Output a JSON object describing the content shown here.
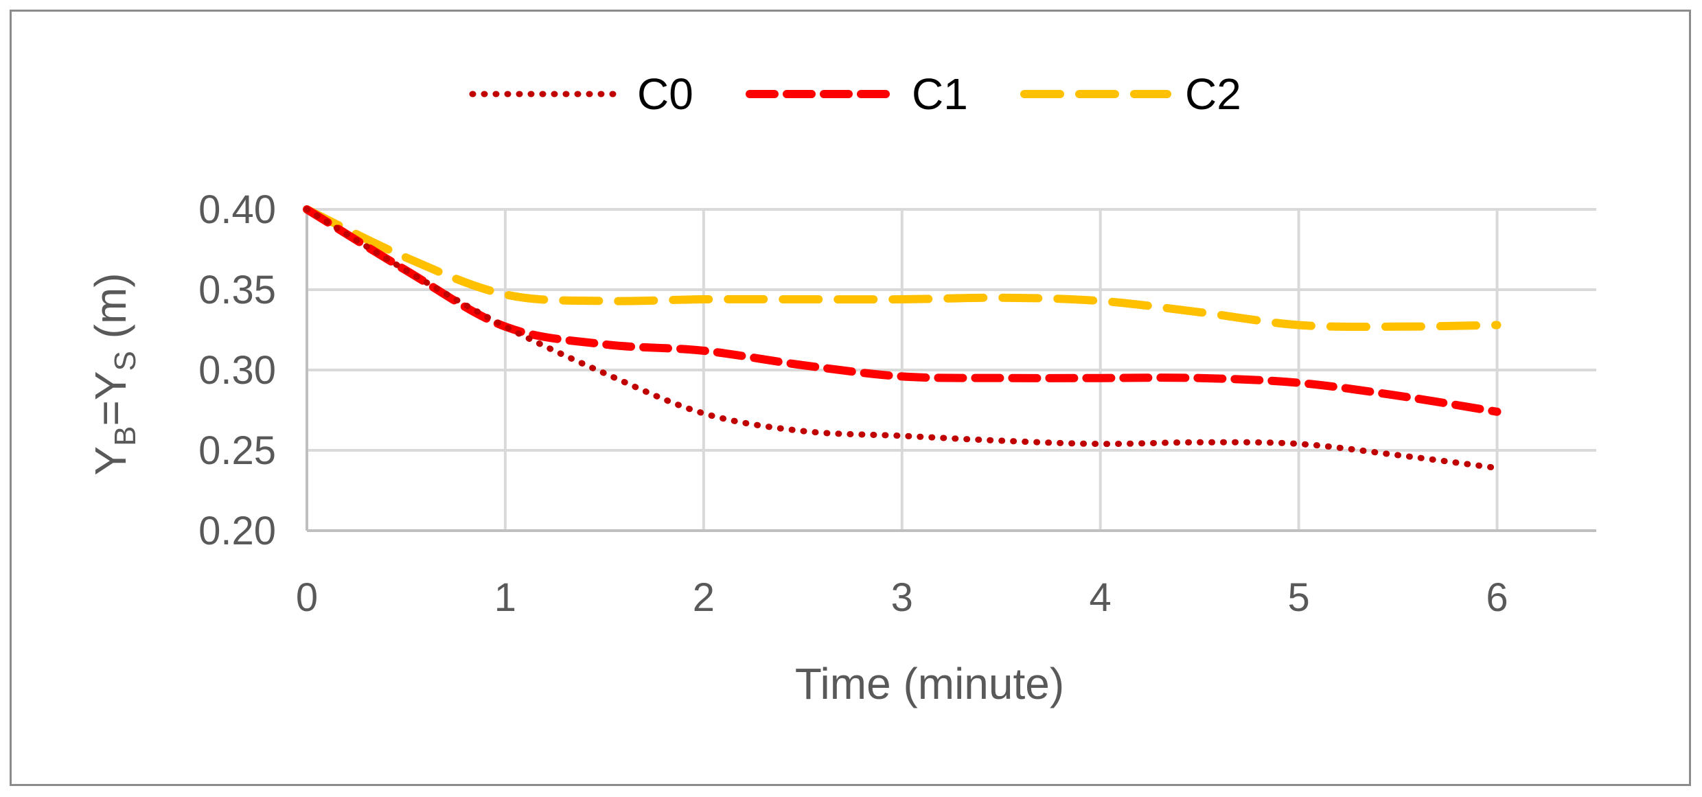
{
  "chart_data": {
    "type": "line",
    "xlabel": "Time (minute)",
    "ylabel": {
      "base1": "Y",
      "sub1": "B",
      "mid": "=Y",
      "sub2": "S",
      "unit": " (m)"
    },
    "xlim": [
      0,
      6.5
    ],
    "ylim": [
      0.2,
      0.4
    ],
    "x_ticks": [
      "0",
      "1",
      "2",
      "3",
      "4",
      "5",
      "6"
    ],
    "y_ticks": [
      "0.40",
      "0.35",
      "0.30",
      "0.25",
      "0.20"
    ],
    "grid": true,
    "legend_position": "top-center",
    "series": [
      {
        "name": "C0",
        "style": "dotted",
        "color": "#c00000",
        "x": [
          0,
          0.5,
          1,
          1.5,
          2,
          2.5,
          3,
          3.5,
          4,
          4.5,
          5,
          5.5,
          6
        ],
        "y": [
          0.4,
          0.362,
          0.327,
          0.298,
          0.273,
          0.262,
          0.259,
          0.256,
          0.254,
          0.255,
          0.254,
          0.247,
          0.239
        ]
      },
      {
        "name": "C1",
        "style": "dashed",
        "color": "#ff0000",
        "x": [
          0,
          0.5,
          1,
          1.5,
          2,
          2.5,
          3,
          3.5,
          4,
          4.5,
          5,
          5.5,
          6
        ],
        "y": [
          0.4,
          0.362,
          0.327,
          0.316,
          0.312,
          0.303,
          0.296,
          0.295,
          0.295,
          0.295,
          0.292,
          0.284,
          0.274
        ]
      },
      {
        "name": "C2",
        "style": "long-dash",
        "color": "#ffc000",
        "x": [
          0,
          0.5,
          1,
          1.5,
          2,
          2.5,
          3,
          3.5,
          4,
          4.5,
          5,
          5.5,
          6
        ],
        "y": [
          0.4,
          0.37,
          0.347,
          0.343,
          0.344,
          0.344,
          0.344,
          0.345,
          0.343,
          0.336,
          0.328,
          0.327,
          0.328
        ]
      }
    ]
  }
}
